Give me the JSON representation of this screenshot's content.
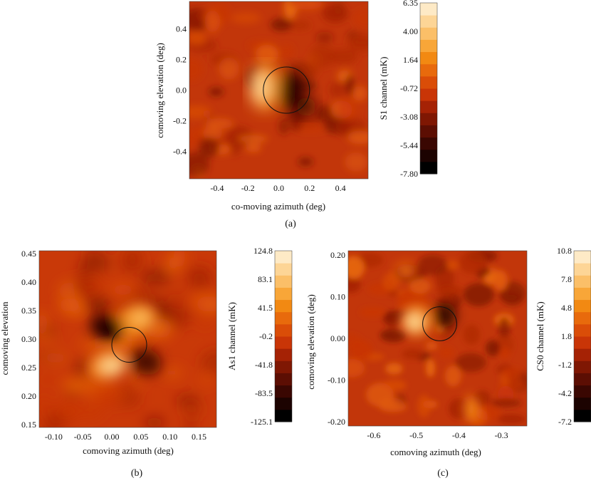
{
  "colors": {
    "palette": [
      "#000000",
      "#1c0301",
      "#3a0702",
      "#5c0e03",
      "#7f1703",
      "#a52205",
      "#c93507",
      "#da4d08",
      "#e86a0c",
      "#f28912",
      "#f8a638",
      "#fbbf68",
      "#fdd596",
      "#feeac6"
    ],
    "background": "#ffffff",
    "plot_base": "#c2360a"
  },
  "chart_data": [
    {
      "type": "heatmap",
      "caption": "(a)",
      "xlabel": "co-moving azimuth  (deg)",
      "ylabel": "comoving elevation  (deg)",
      "xlim": [
        -0.58,
        0.58
      ],
      "ylim": [
        -0.58,
        0.58
      ],
      "xticks": [
        "-0.4",
        "-0.2",
        "0.0",
        "0.2",
        "0.4"
      ],
      "xtick_values": [
        -0.4,
        -0.2,
        0.0,
        0.2,
        0.4
      ],
      "yticks": [
        "0.4",
        "0.2",
        "0.0",
        "-0.2",
        "-0.4"
      ],
      "ytick_values": [
        0.4,
        0.2,
        0.0,
        -0.2,
        -0.4
      ],
      "colorbar": {
        "label": "S1 channel  (mK)",
        "ticks": [
          "6.35",
          "4.00",
          "1.64",
          "-0.72",
          "-3.08",
          "-5.44",
          "-7.80"
        ],
        "range": [
          -7.8,
          6.35
        ]
      },
      "circle": {
        "cx": 0.05,
        "cy": 0.0,
        "r": 0.15
      }
    },
    {
      "type": "heatmap",
      "caption": "(b)",
      "xlabel": "comoving azimuth  (deg)",
      "ylabel": "comoving elevation",
      "xlim": [
        -0.125,
        0.18
      ],
      "ylim": [
        0.145,
        0.455
      ],
      "xticks": [
        "-0.10",
        "-0.05",
        "0.00",
        "0.05",
        "0.10",
        "0.15"
      ],
      "xtick_values": [
        -0.1,
        -0.05,
        0.0,
        0.05,
        0.1,
        0.15
      ],
      "yticks": [
        "0.45",
        "0.40",
        "0.35",
        "0.30",
        "0.25",
        "0.20",
        "0.15"
      ],
      "ytick_values": [
        0.45,
        0.4,
        0.35,
        0.3,
        0.25,
        0.2,
        0.15
      ],
      "colorbar": {
        "label": "As1 channel  (mK)",
        "ticks": [
          "124.8",
          "83.1",
          "41.5",
          "-0.2",
          "-41.8",
          "-83.5",
          "-125.1"
        ],
        "range": [
          -125.1,
          124.8
        ]
      },
      "circle": {
        "cx": 0.03,
        "cy": 0.29,
        "r": 0.03
      }
    },
    {
      "type": "heatmap",
      "caption": "(c)",
      "xlabel": "comoving azimuth  (deg)",
      "ylabel": "comoving elevation  (deg)",
      "xlim": [
        -0.66,
        -0.24
      ],
      "ylim": [
        -0.21,
        0.21
      ],
      "xticks": [
        "-0.6",
        "-0.5",
        "-0.4",
        "-0.3"
      ],
      "xtick_values": [
        -0.6,
        -0.5,
        -0.4,
        -0.3
      ],
      "yticks": [
        "0.20",
        "0.10",
        "0.00",
        "-0.10",
        "-0.20"
      ],
      "ytick_values": [
        0.2,
        0.1,
        0.0,
        -0.1,
        -0.2
      ],
      "colorbar": {
        "label": "CS0 channel  (mK)",
        "ticks": [
          "10.8",
          "7.8",
          "4.8",
          "1.8",
          "-1.2",
          "-4.2",
          "-7.2"
        ],
        "range": [
          -7.2,
          10.8
        ]
      },
      "circle": {
        "cx": -0.445,
        "cy": 0.035,
        "r": 0.04
      }
    }
  ]
}
